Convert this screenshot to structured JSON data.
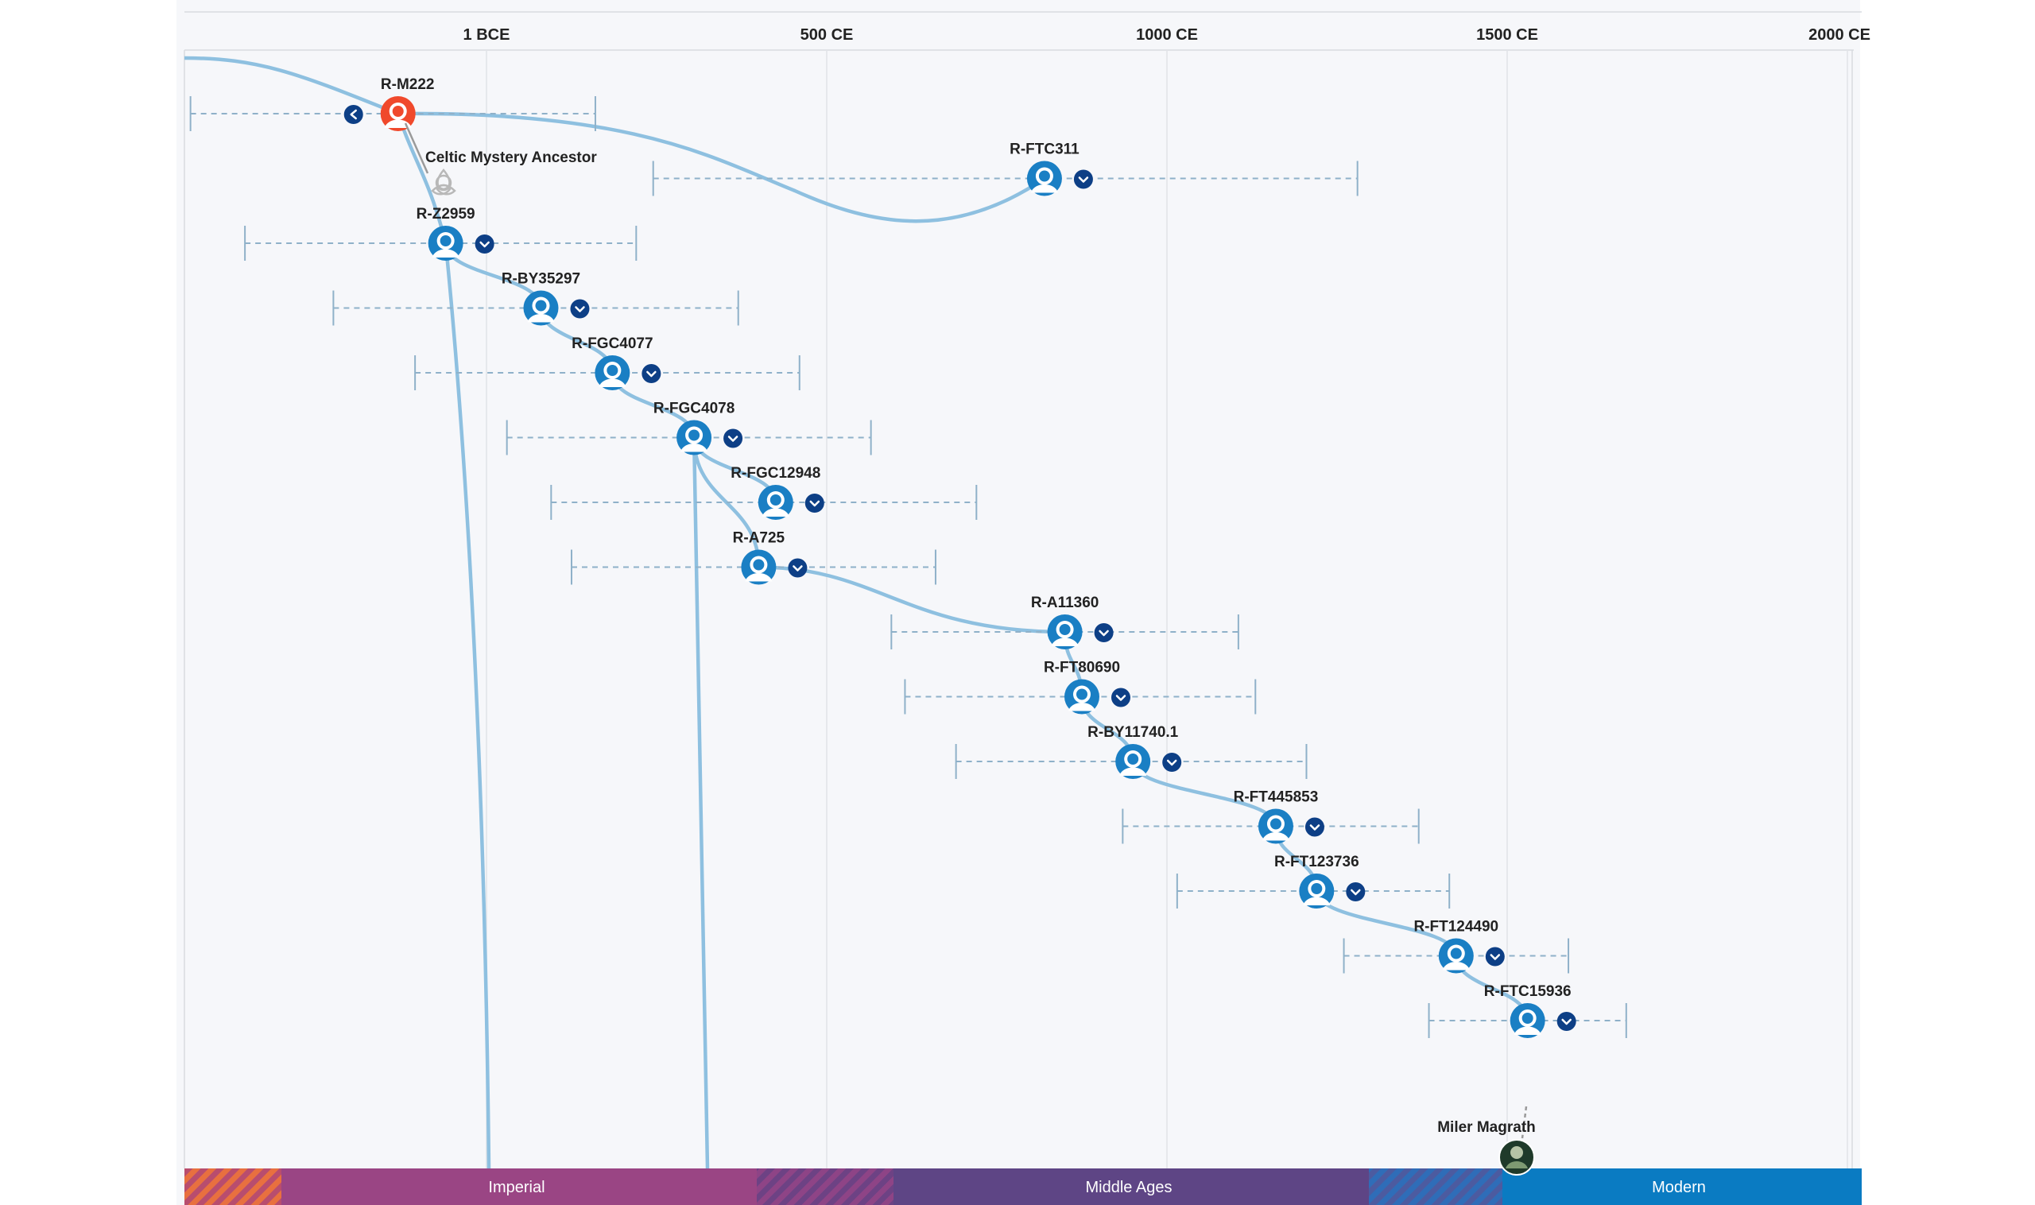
{
  "timeline": {
    "axis_ticks": [
      {
        "label": "1 BCE",
        "year": 0
      },
      {
        "label": "500 CE",
        "year": 500
      },
      {
        "label": "1000 CE",
        "year": 1000
      },
      {
        "label": "1500 CE",
        "year": 1500
      },
      {
        "label": "2000 CE",
        "year": 2000
      }
    ],
    "eras": [
      {
        "label": "Imperial",
        "color": "#9a4584"
      },
      {
        "label": "Middle Ages",
        "color": "#5e4585"
      },
      {
        "label": "Modern",
        "color": "#0a7bc2"
      }
    ],
    "colors": {
      "line": "#8ec0e0",
      "node": "#1a7fc4",
      "root_node": "#f0492c",
      "expand": "#0d3f86",
      "range": "#8fb1c9"
    },
    "haplogroups": [
      {
        "id": "R-M222",
        "year": -130,
        "range": [
          -435,
          160
        ],
        "root": true,
        "expand": "left"
      },
      {
        "id": "R-FTC311",
        "year": 820,
        "range": [
          245,
          1280
        ],
        "expand": "right"
      },
      {
        "id": "R-Z2959",
        "year": -60,
        "range": [
          -355,
          220
        ],
        "expand": "right"
      },
      {
        "id": "R-BY35297",
        "year": 80,
        "range": [
          -225,
          370
        ],
        "expand": "right"
      },
      {
        "id": "R-FGC4077",
        "year": 185,
        "range": [
          -105,
          460
        ],
        "expand": "right"
      },
      {
        "id": "R-FGC4078",
        "year": 305,
        "range": [
          30,
          565
        ],
        "expand": "right"
      },
      {
        "id": "R-FGC12948",
        "year": 425,
        "range": [
          95,
          720
        ],
        "expand": "right"
      },
      {
        "id": "R-A725",
        "year": 400,
        "range": [
          125,
          660
        ],
        "expand": "right"
      },
      {
        "id": "R-A11360",
        "year": 850,
        "range": [
          595,
          1105
        ],
        "expand": "right"
      },
      {
        "id": "R-FT80690",
        "year": 875,
        "range": [
          615,
          1130
        ],
        "expand": "right"
      },
      {
        "id": "R-BY11740.1",
        "year": 950,
        "range": [
          690,
          1205
        ],
        "expand": "right"
      },
      {
        "id": "R-FT445853",
        "year": 1160,
        "range": [
          935,
          1370
        ],
        "expand": "right"
      },
      {
        "id": "R-FT123736",
        "year": 1220,
        "range": [
          1015,
          1415
        ],
        "expand": "right"
      },
      {
        "id": "R-FT124490",
        "year": 1425,
        "range": [
          1260,
          1590
        ],
        "expand": "right"
      },
      {
        "id": "R-FTC15936",
        "year": 1530,
        "range": [
          1385,
          1675
        ],
        "expand": "right"
      }
    ],
    "mystery_ancestor": {
      "label": "Celtic Mystery Ancestor",
      "icon": "triquetra-icon"
    },
    "person": {
      "label": "Miler Magrath",
      "icon": "portrait-avatar"
    }
  }
}
